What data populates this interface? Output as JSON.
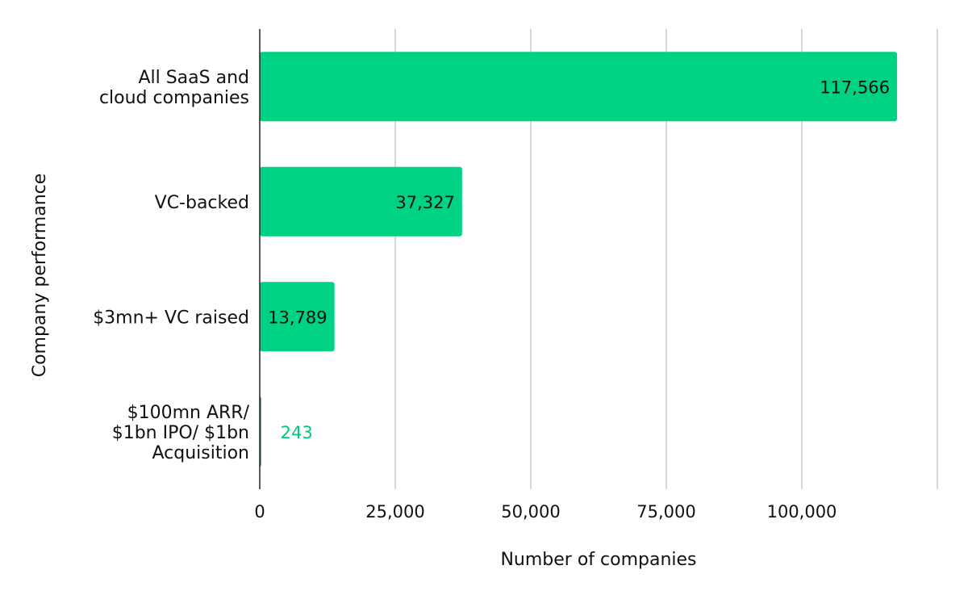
{
  "chart_data": {
    "type": "bar",
    "orientation": "horizontal",
    "title": "",
    "xlabel": "Number of companies",
    "ylabel": "Company performance",
    "xlim": [
      0,
      125000
    ],
    "xticks": [
      0,
      25000,
      50000,
      75000,
      100000
    ],
    "xtick_labels": [
      "0",
      "25,000",
      "50,000",
      "75,000",
      "100,000"
    ],
    "grid": true,
    "bar_color": "#00d283",
    "inside_label_color": "#111111",
    "outside_label_color": "#00c77c",
    "categories": [
      {
        "lines": [
          "All SaaS and",
          "cloud companies"
        ],
        "value": 117566,
        "label": "117,566"
      },
      {
        "lines": [
          "VC-backed"
        ],
        "value": 37327,
        "label": "37,327"
      },
      {
        "lines": [
          "$3mn+ VC raised"
        ],
        "value": 13789,
        "label": "13,789"
      },
      {
        "lines": [
          "$100mn ARR/",
          "$1bn IPO/ $1bn",
          "Acquisition"
        ],
        "value": 243,
        "label": "243"
      }
    ]
  }
}
